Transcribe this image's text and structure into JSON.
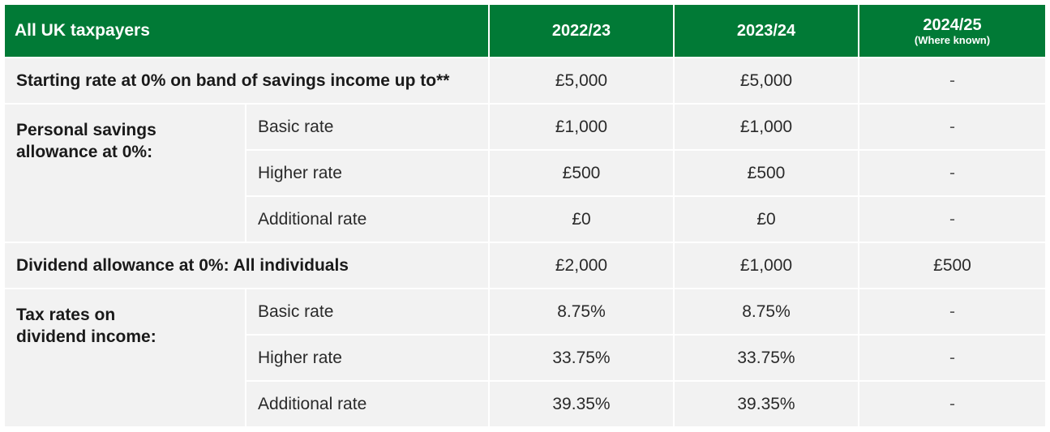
{
  "header": {
    "label": "All UK taxpayers",
    "year1": "2022/23",
    "year2": "2023/24",
    "year3": "2024/25",
    "year3_note": "(Where known)"
  },
  "starting_rate": {
    "label": "Starting rate at 0% on band of savings income up to**",
    "values": [
      "£5,000",
      "£5,000",
      "-"
    ]
  },
  "savings_allowance": {
    "label_line1": "Personal savings",
    "label_line2": "allowance at 0%:",
    "rows": [
      {
        "label": "Basic rate",
        "values": [
          "£1,000",
          "£1,000",
          "-"
        ]
      },
      {
        "label": "Higher rate",
        "values": [
          "£500",
          "£500",
          "-"
        ]
      },
      {
        "label": "Additional rate",
        "values": [
          "£0",
          "£0",
          "-"
        ]
      }
    ]
  },
  "dividend_allowance": {
    "label": "Dividend allowance at 0%: All individuals",
    "values": [
      "£2,000",
      "£1,000",
      "£500"
    ]
  },
  "dividend_rates": {
    "label_line1": "Tax rates on",
    "label_line2": "dividend income:",
    "rows": [
      {
        "label": "Basic rate",
        "values": [
          "8.75%",
          "8.75%",
          "-"
        ]
      },
      {
        "label": "Higher rate",
        "values": [
          "33.75%",
          "33.75%",
          "-"
        ]
      },
      {
        "label": "Additional rate",
        "values": [
          "39.35%",
          "39.35%",
          "-"
        ]
      }
    ]
  },
  "colors": {
    "header_green": "#017a36",
    "row_grey": "#f2f2f2"
  }
}
